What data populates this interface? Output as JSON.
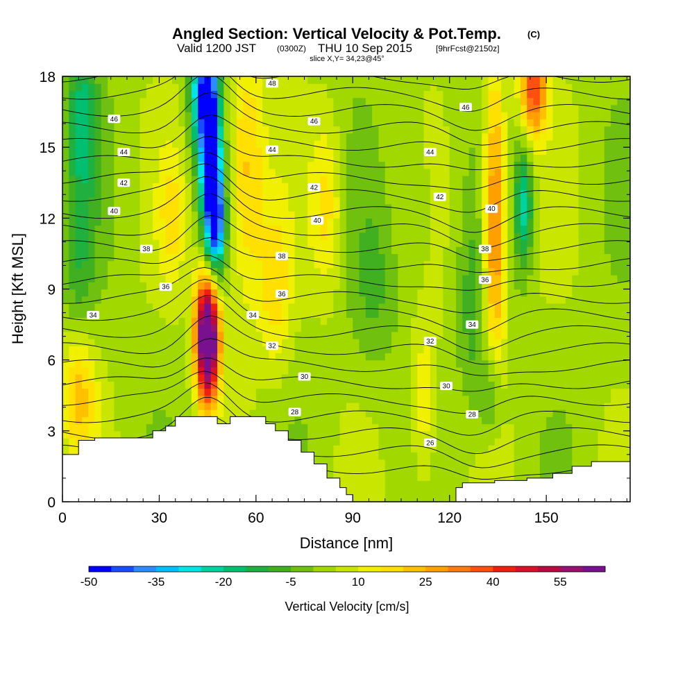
{
  "title": {
    "main": "Angled Section: Vertical Velocity & Pot.Temp.",
    "main_suffix": "(C)",
    "valid_prefix": "Valid 1200 JST",
    "valid_z": "(0300Z)",
    "valid_date": "THU 10 Sep 2015",
    "forecast": "[9hrFcst@2150z]",
    "slice": "slice X,Y= 34,23@45°"
  },
  "chart_data": {
    "type": "heatmap",
    "xlabel": "Distance [nm]",
    "ylabel": "Height [Kft MSL]",
    "xlim": [
      0,
      176
    ],
    "ylim": [
      0,
      18
    ],
    "x_ticks": [
      0,
      30,
      60,
      90,
      120,
      150
    ],
    "y_ticks": [
      0,
      3,
      6,
      9,
      12,
      15,
      18
    ],
    "color_levels": [
      -50,
      -45,
      -40,
      -35,
      -30,
      -25,
      -20,
      -15,
      -10,
      -5,
      0,
      5,
      10,
      15,
      20,
      25,
      30,
      35,
      40,
      45,
      50,
      55,
      60,
      65
    ],
    "colors": [
      "#0000ff",
      "#1a4cff",
      "#2c8cff",
      "#00bfff",
      "#00e5e5",
      "#00d2a0",
      "#00c070",
      "#20b040",
      "#40b020",
      "#70c010",
      "#a0d800",
      "#c8e600",
      "#f0f000",
      "#ffe000",
      "#ffc000",
      "#ffa000",
      "#ff7a10",
      "#ff5010",
      "#f02010",
      "#d8102a",
      "#b80a40",
      "#981070",
      "#781090"
    ],
    "colorbar_labels": [
      -50,
      -35,
      -20,
      -5,
      10,
      25,
      40,
      55
    ],
    "colorbar_title": "Vertical Velocity [cm/s]",
    "velocity_features": [
      {
        "x": 45,
        "y": 7.5,
        "sx": 2.6,
        "sy": 1.8,
        "value": 62
      },
      {
        "x": 45,
        "y": 6.0,
        "sx": 2.4,
        "sy": 1.6,
        "value": 30
      },
      {
        "x": 46,
        "y": 14.5,
        "sx": 2.2,
        "sy": 3.2,
        "value": -55
      },
      {
        "x": 43,
        "y": 17.5,
        "sx": 2.5,
        "sy": 2.0,
        "value": -35
      },
      {
        "x": 48,
        "y": 11.8,
        "sx": 1.8,
        "sy": 1.6,
        "value": -30
      },
      {
        "x": 6,
        "y": 16,
        "sx": 3.5,
        "sy": 2.5,
        "value": -20
      },
      {
        "x": 5,
        "y": 10,
        "sx": 3.5,
        "sy": 2.0,
        "value": -10
      },
      {
        "x": 57,
        "y": 14,
        "sx": 4.0,
        "sy": 4.0,
        "value": 20
      },
      {
        "x": 66,
        "y": 9,
        "sx": 3.5,
        "sy": 2.5,
        "value": 14
      },
      {
        "x": 82,
        "y": 12.5,
        "sx": 3.5,
        "sy": 2.5,
        "value": 14
      },
      {
        "x": 134,
        "y": 12,
        "sx": 2.5,
        "sy": 4.5,
        "value": 32
      },
      {
        "x": 146,
        "y": 17.5,
        "sx": 3.0,
        "sy": 1.5,
        "value": 35
      },
      {
        "x": 143,
        "y": 12.5,
        "sx": 2.0,
        "sy": 1.8,
        "value": -25
      },
      {
        "x": 127,
        "y": 8,
        "sx": 3.0,
        "sy": 3.0,
        "value": -10
      },
      {
        "x": 133,
        "y": 4.5,
        "sx": 2.5,
        "sy": 1.5,
        "value": -15
      },
      {
        "x": 5,
        "y": 4.5,
        "sx": 4.0,
        "sy": 1.8,
        "value": 18
      },
      {
        "x": 34,
        "y": 12,
        "sx": 3.0,
        "sy": 2.0,
        "value": 12
      },
      {
        "x": 112,
        "y": 4,
        "sx": 3.0,
        "sy": 3.0,
        "value": 12
      },
      {
        "x": 97,
        "y": 9,
        "sx": 5.0,
        "sy": 2.5,
        "value": -8
      },
      {
        "x": 110,
        "y": 12,
        "sx": 3.0,
        "sy": 3.0,
        "value": -6
      }
    ],
    "background_velocity": 3,
    "terrain": [
      [
        0,
        2.0
      ],
      [
        5,
        2.0
      ],
      [
        5,
        2.6
      ],
      [
        10,
        2.6
      ],
      [
        10,
        2.7
      ],
      [
        28,
        2.7
      ],
      [
        28,
        3.0
      ],
      [
        32,
        3.0
      ],
      [
        32,
        3.2
      ],
      [
        35,
        3.2
      ],
      [
        35,
        3.6
      ],
      [
        48,
        3.6
      ],
      [
        48,
        3.3
      ],
      [
        52,
        3.3
      ],
      [
        52,
        3.6
      ],
      [
        63,
        3.6
      ],
      [
        63,
        3.3
      ],
      [
        66,
        3.3
      ],
      [
        66,
        3.0
      ],
      [
        70,
        3.0
      ],
      [
        70,
        2.6
      ],
      [
        74,
        2.6
      ],
      [
        74,
        2.1
      ],
      [
        78,
        2.1
      ],
      [
        78,
        1.6
      ],
      [
        82,
        1.6
      ],
      [
        82,
        1.0
      ],
      [
        86,
        1.0
      ],
      [
        86,
        0.6
      ],
      [
        88,
        0.6
      ],
      [
        88,
        0.3
      ],
      [
        90,
        0.3
      ],
      [
        90,
        0.0
      ],
      [
        122,
        0.0
      ],
      [
        122,
        0.6
      ],
      [
        124,
        0.6
      ],
      [
        124,
        0.8
      ],
      [
        134,
        0.8
      ],
      [
        134,
        0.9
      ],
      [
        144,
        0.9
      ],
      [
        144,
        1.0
      ],
      [
        152,
        1.0
      ],
      [
        152,
        1.2
      ],
      [
        158,
        1.2
      ],
      [
        158,
        1.5
      ],
      [
        164,
        1.5
      ],
      [
        164,
        1.7
      ],
      [
        176,
        1.7
      ]
    ],
    "contour_labels": [
      {
        "x": 16,
        "y": 16.2,
        "text": "46"
      },
      {
        "x": 19,
        "y": 14.8,
        "text": "44"
      },
      {
        "x": 19,
        "y": 13.5,
        "text": "42"
      },
      {
        "x": 16,
        "y": 12.3,
        "text": "40"
      },
      {
        "x": 26,
        "y": 10.7,
        "text": "38"
      },
      {
        "x": 32,
        "y": 9.1,
        "text": "36"
      },
      {
        "x": 9.5,
        "y": 7.9,
        "text": "34"
      },
      {
        "x": 65,
        "y": 17.7,
        "text": "48"
      },
      {
        "x": 65,
        "y": 14.9,
        "text": "44"
      },
      {
        "x": 78,
        "y": 16.1,
        "text": "46"
      },
      {
        "x": 78,
        "y": 13.3,
        "text": "42"
      },
      {
        "x": 79,
        "y": 11.9,
        "text": "40"
      },
      {
        "x": 68,
        "y": 10.4,
        "text": "38"
      },
      {
        "x": 68,
        "y": 8.8,
        "text": "36"
      },
      {
        "x": 59,
        "y": 7.9,
        "text": "34"
      },
      {
        "x": 65,
        "y": 6.6,
        "text": "32"
      },
      {
        "x": 75,
        "y": 5.3,
        "text": "30"
      },
      {
        "x": 72,
        "y": 3.8,
        "text": "28"
      },
      {
        "x": 114,
        "y": 6.8,
        "text": "32"
      },
      {
        "x": 114,
        "y": 2.5,
        "text": "26"
      },
      {
        "x": 119,
        "y": 4.9,
        "text": "30"
      },
      {
        "x": 127,
        "y": 3.7,
        "text": "28"
      },
      {
        "x": 127,
        "y": 7.5,
        "text": "34"
      },
      {
        "x": 131,
        "y": 9.4,
        "text": "36"
      },
      {
        "x": 131,
        "y": 10.7,
        "text": "38"
      },
      {
        "x": 133,
        "y": 12.4,
        "text": "40"
      },
      {
        "x": 117,
        "y": 12.9,
        "text": "42"
      },
      {
        "x": 114,
        "y": 14.8,
        "text": "44"
      },
      {
        "x": 125,
        "y": 16.7,
        "text": "46"
      }
    ],
    "isentropes": [
      26,
      27,
      28,
      29,
      30,
      31,
      32,
      33,
      34,
      35,
      36,
      37,
      38,
      39,
      40,
      41,
      42,
      43,
      44,
      45,
      46,
      47,
      48,
      49
    ]
  }
}
